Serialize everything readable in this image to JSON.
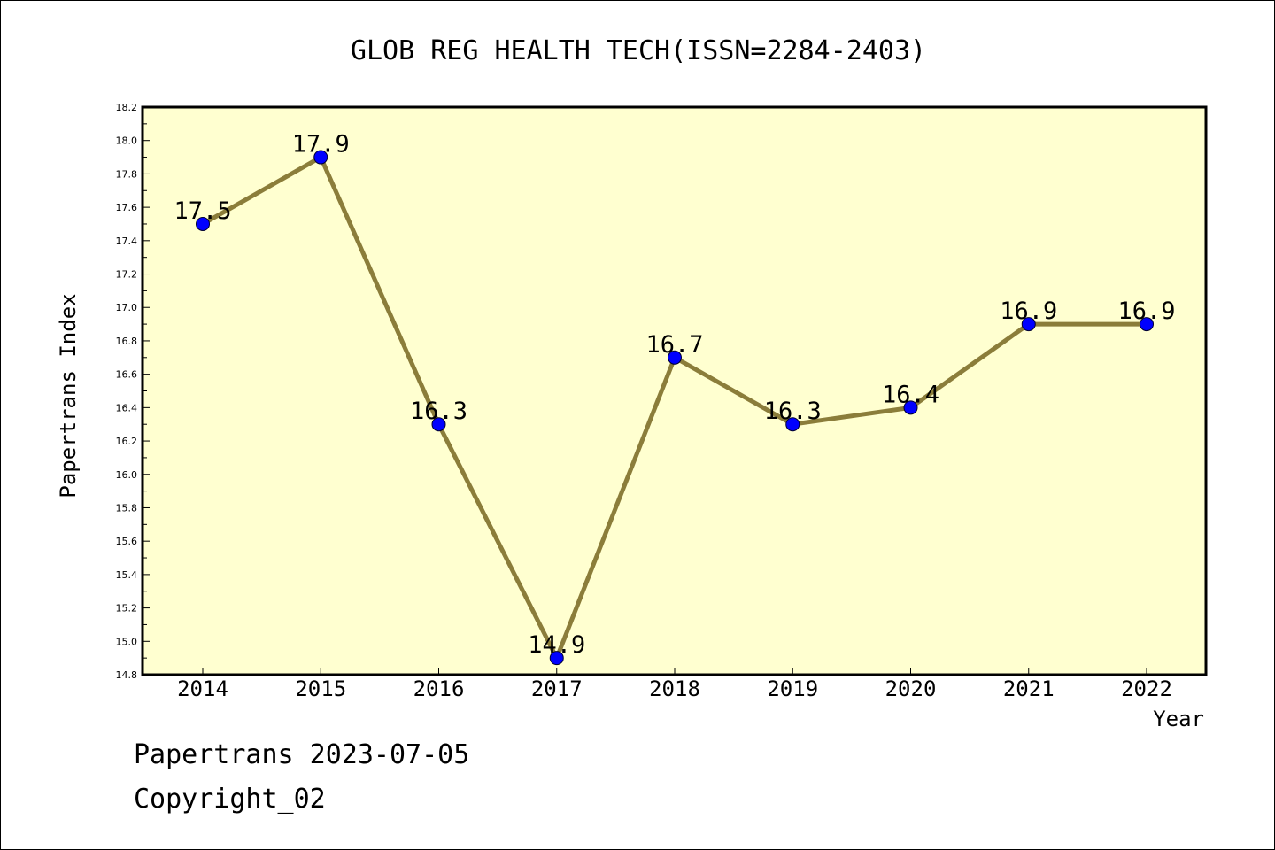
{
  "footer": {
    "line1": "Papertrans 2023-07-05",
    "line2": "Copyright_02"
  },
  "colors": {
    "plot_background": "#ffffd0",
    "line": "#8b7d3a",
    "marker": "#0000ff"
  },
  "chart_data": {
    "type": "line",
    "title": "GLOB REG HEALTH TECH(ISSN=2284-2403)",
    "xlabel": "Year",
    "ylabel": "Papertrans Index",
    "categories": [
      "2014",
      "2015",
      "2016",
      "2017",
      "2018",
      "2019",
      "2020",
      "2021",
      "2022"
    ],
    "series": [
      {
        "values": [
          17.5,
          17.9,
          16.3,
          14.9,
          16.7,
          16.3,
          16.4,
          16.9,
          16.9
        ],
        "labels": [
          "17.5",
          "17.9",
          "16.3",
          "14.9",
          "16.7",
          "16.3",
          "16.4",
          "16.9",
          "16.9"
        ]
      }
    ],
    "ylim": [
      14.8,
      18.2
    ],
    "yticks": [
      "14.8",
      "15.0",
      "15.2",
      "15.4",
      "15.6",
      "15.8",
      "16.0",
      "16.2",
      "16.4",
      "16.6",
      "16.8",
      "17.0",
      "17.2",
      "17.4",
      "17.6",
      "17.8",
      "18.0",
      "18.2"
    ],
    "grid": false,
    "legend": false
  }
}
